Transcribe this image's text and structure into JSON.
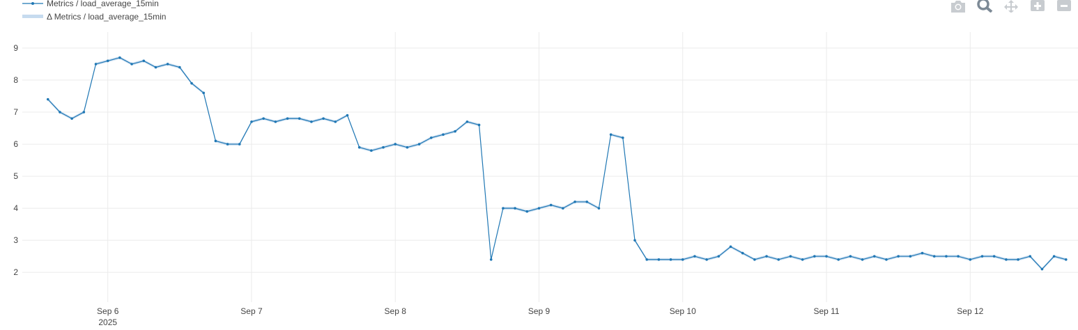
{
  "toolbar": {
    "buttons": [
      {
        "name": "camera-icon",
        "label": "Download plot as a png"
      },
      {
        "name": "zoom-icon",
        "label": "Zoom"
      },
      {
        "name": "pan-icon",
        "label": "Pan"
      },
      {
        "name": "zoom-in-icon",
        "label": "Zoom in"
      },
      {
        "name": "zoom-out-icon",
        "label": "Zoom out"
      }
    ]
  },
  "colors": {
    "line": "#1f77b4",
    "band": "#c6dbef",
    "grid": "#ebebeb",
    "icon": "#c8ccd0",
    "icon_active": "#7d8a96"
  },
  "chart_data": {
    "type": "line",
    "legend": [
      "Metrics / load_average_15min",
      "Δ Metrics / load_average_15min"
    ],
    "legend_placement": "top-left",
    "grid": true,
    "x_type": "date",
    "xlim": [
      "2025-09-05T06:00",
      "2025-09-12T18:00"
    ],
    "ylim": [
      1.2,
      9.5
    ],
    "yticks": [
      2,
      3,
      4,
      5,
      6,
      7,
      8,
      9
    ],
    "xticks": [
      {
        "value": "2025-09-06",
        "label": "Sep 6",
        "sublabel": "2025"
      },
      {
        "value": "2025-09-07",
        "label": "Sep 7"
      },
      {
        "value": "2025-09-08",
        "label": "Sep 8"
      },
      {
        "value": "2025-09-09",
        "label": "Sep 9"
      },
      {
        "value": "2025-09-10",
        "label": "Sep 10"
      },
      {
        "value": "2025-09-11",
        "label": "Sep 11"
      },
      {
        "value": "2025-09-12",
        "label": "Sep 12"
      }
    ],
    "series": [
      {
        "name": "Metrics / load_average_15min",
        "x": [
          "2025-09-05T14:00",
          "2025-09-05T16:00",
          "2025-09-05T18:00",
          "2025-09-05T20:00",
          "2025-09-05T22:00",
          "2025-09-06T00:00",
          "2025-09-06T02:00",
          "2025-09-06T04:00",
          "2025-09-06T06:00",
          "2025-09-06T08:00",
          "2025-09-06T10:00",
          "2025-09-06T12:00",
          "2025-09-06T14:00",
          "2025-09-06T16:00",
          "2025-09-06T18:00",
          "2025-09-06T20:00",
          "2025-09-06T22:00",
          "2025-09-07T00:00",
          "2025-09-07T02:00",
          "2025-09-07T04:00",
          "2025-09-07T06:00",
          "2025-09-07T08:00",
          "2025-09-07T10:00",
          "2025-09-07T12:00",
          "2025-09-07T14:00",
          "2025-09-07T16:00",
          "2025-09-07T18:00",
          "2025-09-07T20:00",
          "2025-09-07T22:00",
          "2025-09-08T00:00",
          "2025-09-08T02:00",
          "2025-09-08T04:00",
          "2025-09-08T06:00",
          "2025-09-08T08:00",
          "2025-09-08T10:00",
          "2025-09-08T12:00",
          "2025-09-08T14:00",
          "2025-09-08T16:00",
          "2025-09-08T18:00",
          "2025-09-08T20:00",
          "2025-09-08T22:00",
          "2025-09-09T00:00",
          "2025-09-09T02:00",
          "2025-09-09T04:00",
          "2025-09-09T06:00",
          "2025-09-09T08:00",
          "2025-09-09T10:00",
          "2025-09-09T12:00",
          "2025-09-09T14:00",
          "2025-09-09T16:00",
          "2025-09-09T18:00",
          "2025-09-09T20:00",
          "2025-09-09T22:00",
          "2025-09-10T00:00",
          "2025-09-10T02:00",
          "2025-09-10T04:00",
          "2025-09-10T06:00",
          "2025-09-10T08:00",
          "2025-09-10T10:00",
          "2025-09-10T12:00",
          "2025-09-10T14:00",
          "2025-09-10T16:00",
          "2025-09-10T18:00",
          "2025-09-10T20:00",
          "2025-09-10T22:00",
          "2025-09-11T00:00",
          "2025-09-11T02:00",
          "2025-09-11T04:00",
          "2025-09-11T06:00",
          "2025-09-11T08:00",
          "2025-09-11T10:00",
          "2025-09-11T12:00",
          "2025-09-11T14:00",
          "2025-09-11T16:00",
          "2025-09-11T18:00",
          "2025-09-11T20:00",
          "2025-09-11T22:00",
          "2025-09-12T00:00",
          "2025-09-12T02:00",
          "2025-09-12T04:00",
          "2025-09-12T06:00",
          "2025-09-12T08:00",
          "2025-09-12T10:00",
          "2025-09-12T12:00",
          "2025-09-12T14:00",
          "2025-09-12T16:00"
        ],
        "y": [
          7.4,
          7.0,
          6.8,
          7.0,
          8.5,
          8.6,
          8.7,
          8.5,
          8.6,
          8.4,
          8.5,
          8.4,
          7.9,
          7.6,
          6.1,
          6.0,
          6.0,
          6.7,
          6.8,
          6.7,
          6.8,
          6.8,
          6.7,
          6.8,
          6.7,
          6.9,
          5.9,
          5.8,
          5.9,
          6.0,
          5.9,
          6.0,
          6.2,
          6.3,
          6.4,
          6.7,
          6.6,
          2.4,
          4.0,
          4.0,
          3.9,
          4.0,
          4.1,
          4.0,
          4.2,
          4.2,
          4.0,
          6.3,
          6.2,
          3.0,
          2.4,
          2.4,
          2.4,
          2.4,
          2.5,
          2.4,
          2.5,
          2.8,
          2.6,
          2.4,
          2.5,
          2.4,
          2.5,
          2.4,
          2.5,
          2.5,
          2.4,
          2.5,
          2.4,
          2.5,
          2.4,
          2.5,
          2.5,
          2.6,
          2.5,
          2.5,
          2.5,
          2.4,
          2.5,
          2.5,
          2.4,
          2.4,
          2.5,
          2.1,
          2.5,
          2.4
        ]
      }
    ]
  }
}
